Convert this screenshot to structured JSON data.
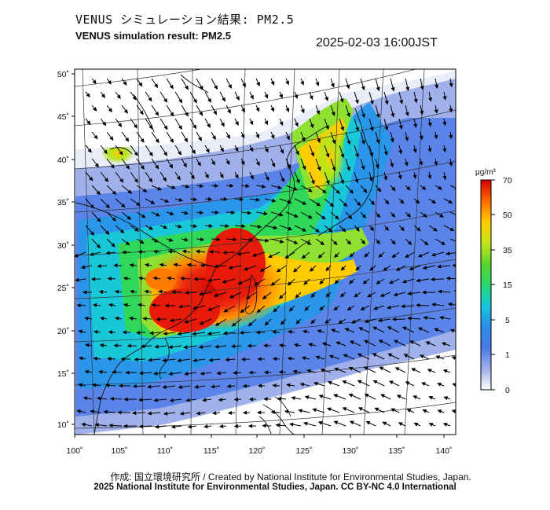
{
  "header": {
    "title_jp": "VENUS シミュレーション結果: PM2.5",
    "title_en": "VENUS simulation result: PM2.5",
    "timestamp": "2025-02-03 16:00JST"
  },
  "footer": {
    "credit_jp": "作成: 国立環境研究所 / Created by National Institute for Environmental Studies, Japan.",
    "credit_en": "2025 National Institute for Environmental Studies, Japan. CC BY-NC 4.0 International"
  },
  "map": {
    "lon_range": [
      100,
      142
    ],
    "lat_range": [
      9,
      51
    ],
    "lon_ticks": [
      "100˚",
      "105˚",
      "110˚",
      "115˚",
      "120˚",
      "125˚",
      "130˚",
      "135˚",
      "140˚"
    ],
    "lat_ticks": [
      "50˚",
      "45˚",
      "40˚",
      "35˚",
      "30˚",
      "25˚",
      "20˚",
      "15˚",
      "10˚"
    ],
    "layers": [
      "pm25-concentration",
      "wind-vectors",
      "coastlines",
      "graticule"
    ]
  },
  "colorbar": {
    "unit": "μg/m³",
    "tick_labels": [
      "70",
      "50",
      "35",
      "15",
      "5",
      "1",
      "0"
    ],
    "colors": [
      "#ffffff",
      "#5a7ee0",
      "#2f6fe8",
      "#19c2e6",
      "#3ad84a",
      "#b5e61d",
      "#ffd400",
      "#ff7f00",
      "#e8160c",
      "#c80000"
    ]
  }
}
